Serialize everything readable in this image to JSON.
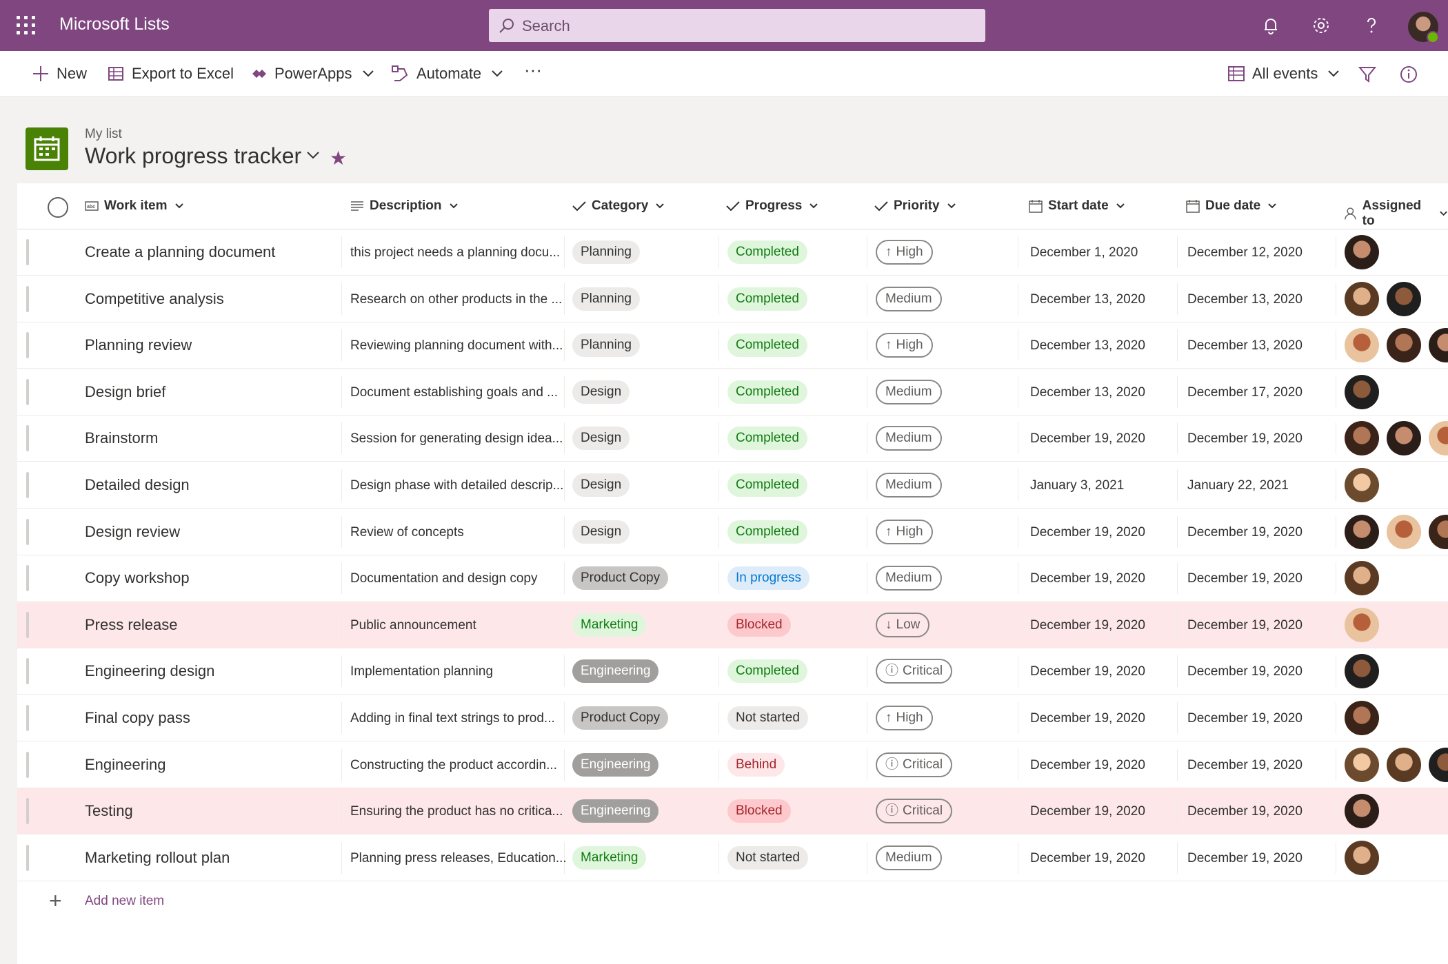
{
  "app": {
    "title": "Microsoft Lists"
  },
  "search": {
    "placeholder": "Search"
  },
  "commands": {
    "new": "New",
    "export": "Export to Excel",
    "powerapps": "PowerApps",
    "automate": "Automate",
    "view": "All events"
  },
  "list": {
    "super": "My list",
    "title": "Work progress tracker"
  },
  "columns": {
    "work_item": "Work item",
    "description": "Description",
    "category": "Category",
    "progress": "Progress",
    "priority": "Priority",
    "start_date": "Start date",
    "due_date": "Due date",
    "assigned_to": "Assigned to"
  },
  "colors": {
    "brand": "#7f4680",
    "planning": "#edebe9",
    "product_copy": "#c8c6c4",
    "marketing": "#dff6dd",
    "engineering": "#a19f9d",
    "completed": "#dff6dd",
    "in_progress": "#deecf9",
    "blocked": "#fdc9cc",
    "not_started": "#edebe9",
    "behind": "#fde7e9"
  },
  "rows": [
    {
      "title": "Create a planning document",
      "description": "this project needs a planning docu...",
      "category": "Planning",
      "progress": "Completed",
      "priority": "High",
      "start": "December 1, 2020",
      "due": "December 12, 2020",
      "avatars": 1
    },
    {
      "title": "Competitive analysis",
      "description": "Research on other products in the ...",
      "category": "Planning",
      "progress": "Completed",
      "priority": "Medium",
      "start": "December 13, 2020",
      "due": "December 13, 2020",
      "avatars": 2
    },
    {
      "title": "Planning review",
      "description": "Reviewing planning document with...",
      "category": "Planning",
      "progress": "Completed",
      "priority": "High",
      "start": "December 13, 2020",
      "due": "December 13, 2020",
      "avatars": 3
    },
    {
      "title": "Design brief",
      "description": "Document establishing goals and ...",
      "category": "Design",
      "progress": "Completed",
      "priority": "Medium",
      "start": "December 13, 2020",
      "due": "December 17, 2020",
      "avatars": 1
    },
    {
      "title": "Brainstorm",
      "description": "Session for generating design idea...",
      "category": "Design",
      "progress": "Completed",
      "priority": "Medium",
      "start": "December 19, 2020",
      "due": "December 19, 2020",
      "avatars": 3
    },
    {
      "title": "Detailed design",
      "description": "Design phase with detailed descrip...",
      "category": "Design",
      "progress": "Completed",
      "priority": "Medium",
      "start": "January 3, 2021",
      "due": "January 22, 2021",
      "avatars": 1
    },
    {
      "title": "Design review",
      "description": "Review of concepts",
      "category": "Design",
      "progress": "Completed",
      "priority": "High",
      "start": "December 19, 2020",
      "due": "December 19, 2020",
      "avatars": 3
    },
    {
      "title": "Copy workshop",
      "description": "Documentation and design copy",
      "category": "Product Copy",
      "progress": "In progress",
      "priority": "Medium",
      "start": "December 19, 2020",
      "due": "December 19, 2020",
      "avatars": 1
    },
    {
      "title": "Press release",
      "description": "Public announcement",
      "category": "Marketing",
      "progress": "Blocked",
      "priority": "Low",
      "start": "December 19, 2020",
      "due": "December 19, 2020",
      "avatars": 1
    },
    {
      "title": "Engineering design",
      "description": "Implementation planning",
      "category": "Engineering",
      "progress": "Completed",
      "priority": "Critical",
      "start": "December 19, 2020",
      "due": "December 19, 2020",
      "avatars": 1
    },
    {
      "title": "Final copy pass",
      "description": "Adding in final text strings to prod...",
      "category": "Product Copy",
      "progress": "Not started",
      "priority": "High",
      "start": "December 19, 2020",
      "due": "December 19, 2020",
      "avatars": 1
    },
    {
      "title": "Engineering",
      "description": "Constructing the product accordin...",
      "category": "Engineering",
      "progress": "Behind",
      "priority": "Critical",
      "start": "December 19, 2020",
      "due": "December 19, 2020",
      "avatars": 3
    },
    {
      "title": "Testing",
      "description": "Ensuring the product has no critica...",
      "category": "Engineering",
      "progress": "Blocked",
      "priority": "Critical",
      "start": "December 19, 2020",
      "due": "December 19, 2020",
      "avatars": 1
    },
    {
      "title": "Marketing rollout plan",
      "description": "Planning press releases, Education...",
      "category": "Marketing",
      "progress": "Not started",
      "priority": "Medium",
      "start": "December 19, 2020",
      "due": "December 19, 2020",
      "avatars": 1
    }
  ],
  "add_new": "Add new item"
}
